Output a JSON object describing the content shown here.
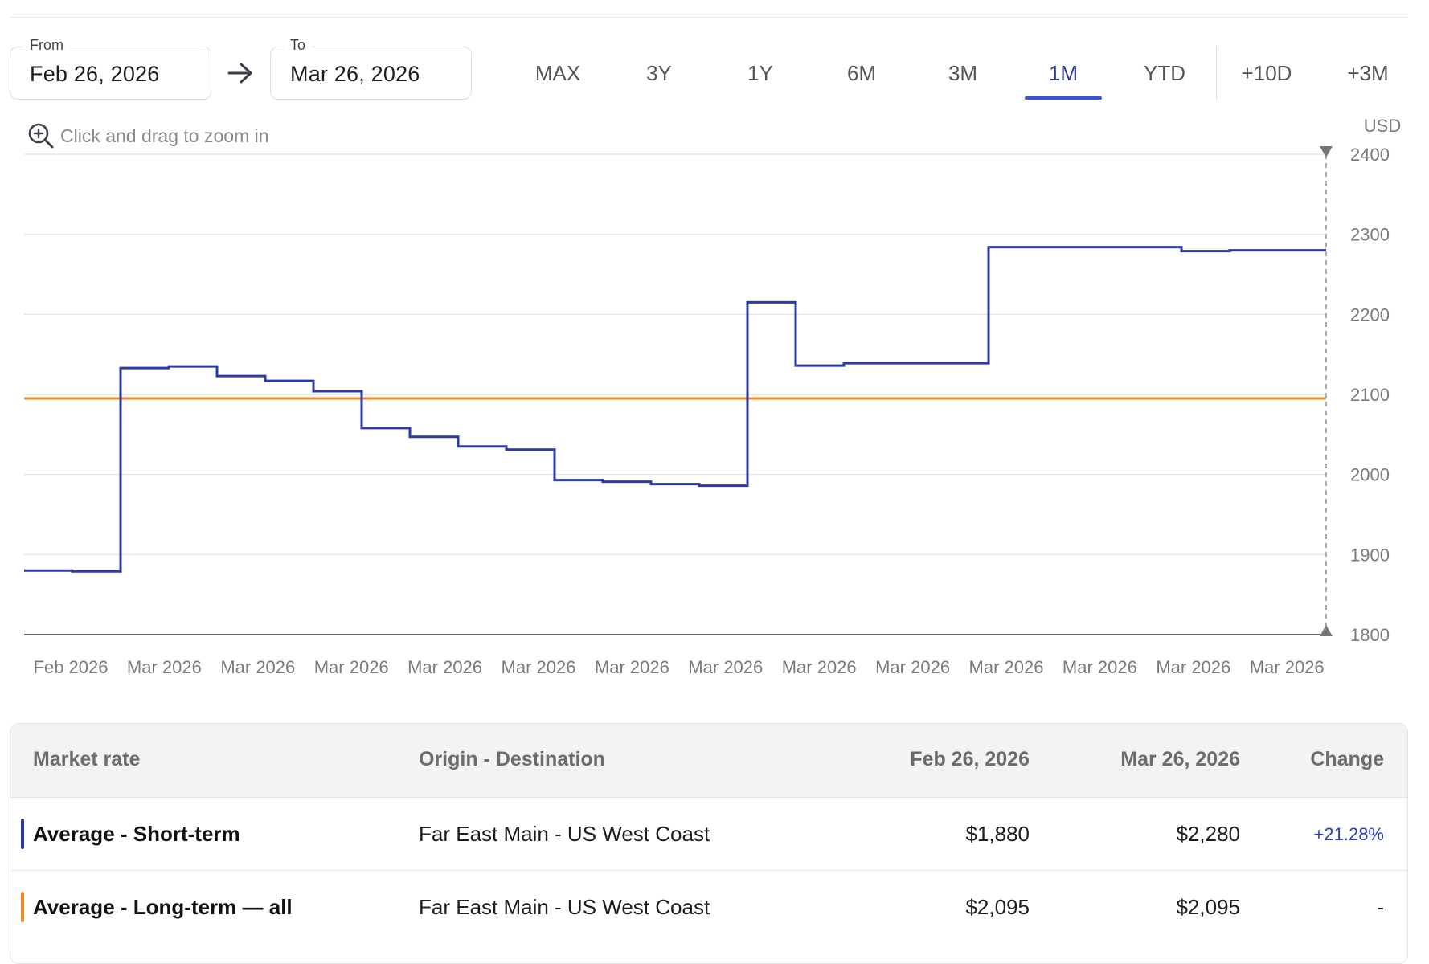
{
  "date_range": {
    "from_label": "From",
    "from_value": "Feb 26, 2026",
    "to_label": "To",
    "to_value": "Mar 26, 2026"
  },
  "range_tabs": [
    {
      "label": "MAX",
      "active": false
    },
    {
      "label": "3Y",
      "active": false
    },
    {
      "label": "1Y",
      "active": false
    },
    {
      "label": "6M",
      "active": false
    },
    {
      "label": "3M",
      "active": false
    },
    {
      "label": "1M",
      "active": true
    },
    {
      "label": "YTD",
      "active": false
    },
    {
      "label": "+10D",
      "active": false
    },
    {
      "label": "+3M",
      "active": false
    }
  ],
  "zoom_hint": "Click and drag to zoom in",
  "icons": {
    "zoom": "zoom-in-icon",
    "arrow": "arrow-right-icon"
  },
  "chart_data": {
    "type": "line",
    "step": true,
    "unit_label": "USD",
    "ylim": [
      1800,
      2400
    ],
    "yticks": [
      "2400",
      "2300",
      "2200",
      "2100",
      "2000",
      "1900",
      "1800"
    ],
    "x_ticks": [
      "Feb 2026",
      "Mar 2026",
      "Mar 2026",
      "Mar 2026",
      "Mar 2026",
      "Mar 2026",
      "Mar 2026",
      "Mar 2026",
      "Mar 2026",
      "Mar 2026",
      "Mar 2026",
      "Mar 2026",
      "Mar 2026",
      "Mar 2026"
    ],
    "grid": true,
    "series": [
      {
        "name": "Average - Short-term",
        "color": "#2b3a9e",
        "values": [
          1880,
          1879,
          2133,
          2135,
          2123,
          2117,
          2104,
          2058,
          2047,
          2035,
          2031,
          1993,
          1991,
          1988,
          1986,
          2215,
          2136,
          2139,
          2139,
          2139,
          2284,
          2284,
          2284,
          2284,
          2279,
          2280,
          2280
        ]
      },
      {
        "name": "Average - Long-term — all",
        "color": "#f08a24",
        "values": [
          2095,
          2095,
          2095,
          2095,
          2095,
          2095,
          2095,
          2095,
          2095,
          2095,
          2095,
          2095,
          2095,
          2095,
          2095,
          2095,
          2095,
          2095,
          2095,
          2095,
          2095,
          2095,
          2095,
          2095,
          2095,
          2095,
          2095
        ]
      }
    ]
  },
  "table": {
    "headers": {
      "market_rate": "Market rate",
      "origin_destination": "Origin - Destination",
      "start": "Feb 26, 2026",
      "end": "Mar 26, 2026",
      "change": "Change"
    },
    "rows": [
      {
        "name": "Average - Short-term",
        "color": "#2b3a9e",
        "route": "Far East Main - US West Coast",
        "start": "$1,880",
        "end": "$2,280",
        "change": "+21.28%"
      },
      {
        "name": "Average - Long-term — all",
        "color": "#f08a24",
        "route": "Far East Main - US West Coast",
        "start": "$2,095",
        "end": "$2,095",
        "change": "-"
      }
    ]
  }
}
